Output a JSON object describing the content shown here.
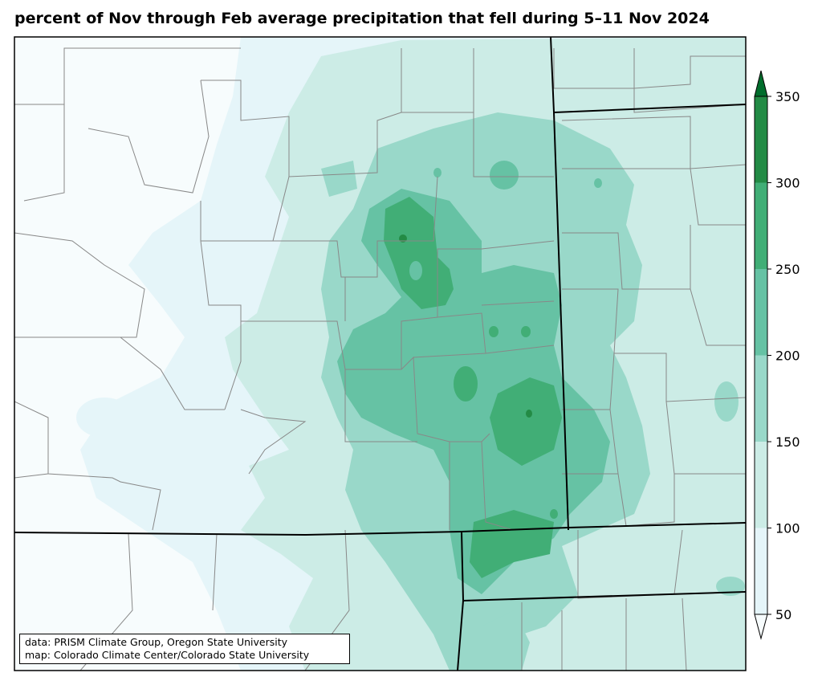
{
  "title": "percent of Nov through Feb average precipitation that fell during 5–11 Nov 2024",
  "credits": {
    "data_line": "data: PRISM Climate Group, Oregon State University",
    "map_line": "map: Colorado Climate Center/Colorado State University"
  },
  "colorbar": {
    "levels": [
      50,
      100,
      150,
      200,
      250,
      300,
      350
    ],
    "tick_labels": [
      "350",
      "300",
      "250",
      "200",
      "150",
      "100",
      "50"
    ],
    "colors": [
      "#f7fcfd",
      "#e5f5f9",
      "#ccece6",
      "#99d8c9",
      "#66c2a4",
      "#41ae76",
      "#238b45",
      "#006d2c"
    ],
    "extend": "both"
  },
  "map": {
    "background_color": "#f7fcfd",
    "county_line_color": "#888888",
    "state_line_color": "#000000"
  }
}
